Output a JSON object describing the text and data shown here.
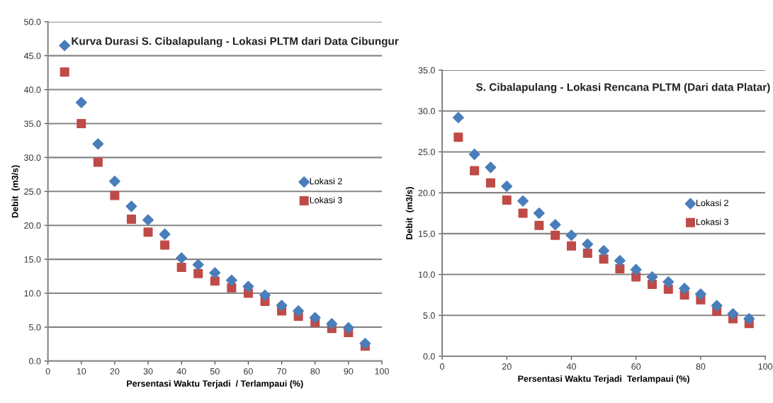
{
  "chart_data": [
    {
      "type": "scatter",
      "title": "Kurva Durasi S. Cibalapulang - Lokasi PLTM dari Data Cibungur",
      "xlabel": "Persentasi Waktu Terjadi  / Terlampaui (%)",
      "ylabel": "Debit  (m3/s)",
      "x": [
        5,
        10,
        15,
        20,
        25,
        30,
        35,
        40,
        45,
        50,
        55,
        60,
        65,
        70,
        75,
        80,
        85,
        90,
        95
      ],
      "series": [
        {
          "name": "Lokasi 2",
          "color": "#4a7ebb",
          "marker": "diamond",
          "values": [
            46.5,
            38.1,
            32.0,
            26.5,
            22.8,
            20.8,
            18.7,
            15.2,
            14.2,
            13.0,
            11.9,
            11.0,
            9.7,
            8.2,
            7.4,
            6.4,
            5.5,
            4.9,
            2.6
          ]
        },
        {
          "name": "Lokasi 3",
          "color": "#be4b48",
          "marker": "square",
          "values": [
            42.6,
            35.0,
            29.3,
            24.4,
            20.9,
            19.0,
            17.1,
            13.8,
            12.9,
            11.8,
            10.8,
            10.0,
            8.8,
            7.4,
            6.6,
            5.7,
            4.8,
            4.2,
            2.2
          ]
        }
      ],
      "xlim": [
        0,
        100
      ],
      "xticks": [
        0,
        10,
        20,
        30,
        40,
        50,
        60,
        70,
        80,
        90,
        100
      ],
      "ylim": [
        0,
        50
      ],
      "yticks": [
        {
          "value": 0,
          "label": "0.0"
        },
        {
          "value": 5,
          "label": "5.0"
        },
        {
          "value": 10,
          "label": "10.0"
        },
        {
          "value": 15,
          "label": "15.0"
        },
        {
          "value": 20,
          "label": "20.0"
        },
        {
          "value": 25,
          "label": "25.0"
        },
        {
          "value": 30,
          "label": "30.0"
        },
        {
          "value": 35,
          "label": "35.0"
        },
        {
          "value": 40,
          "label": "40.0"
        },
        {
          "value": 45,
          "label": "45.0"
        },
        {
          "value": 50,
          "label": "50.0"
        }
      ],
      "grid": "y",
      "legend": "right"
    },
    {
      "type": "scatter",
      "title": "S. Cibalapulang - Lokasi Rencana PLTM (Dari data Platar)",
      "xlabel": "Persentasi Waktu Terjadi  Terlampaui (%)",
      "ylabel": "Debit  (m3/s)",
      "x": [
        5,
        10,
        15,
        20,
        25,
        30,
        35,
        40,
        45,
        50,
        55,
        60,
        65,
        70,
        75,
        80,
        85,
        90,
        95
      ],
      "series": [
        {
          "name": "Lokasi 2",
          "color": "#4a7ebb",
          "marker": "diamond",
          "values": [
            29.2,
            24.7,
            23.1,
            20.8,
            19.0,
            17.5,
            16.1,
            14.8,
            13.7,
            12.9,
            11.7,
            10.6,
            9.7,
            9.1,
            8.3,
            7.6,
            6.2,
            5.2,
            4.6
          ]
        },
        {
          "name": "Lokasi 3",
          "color": "#be4b48",
          "marker": "square",
          "values": [
            26.8,
            22.7,
            21.2,
            19.1,
            17.5,
            16.0,
            14.8,
            13.5,
            12.6,
            11.9,
            10.7,
            9.7,
            8.8,
            8.2,
            7.5,
            6.9,
            5.5,
            4.6,
            4.0
          ]
        }
      ],
      "xlim": [
        0,
        100
      ],
      "xticks": [
        0,
        20,
        40,
        60,
        80,
        100
      ],
      "ylim": [
        0,
        35
      ],
      "yticks": [
        {
          "value": 0,
          "label": "0.0"
        },
        {
          "value": 5,
          "label": "5.0"
        },
        {
          "value": 10,
          "label": "10.0"
        },
        {
          "value": 15,
          "label": "15.0"
        },
        {
          "value": 20,
          "label": "20.0"
        },
        {
          "value": 25,
          "label": "25.0"
        },
        {
          "value": 30,
          "label": "30.0"
        },
        {
          "value": 35,
          "label": "35.0"
        }
      ],
      "grid": "y",
      "legend": "right"
    }
  ]
}
